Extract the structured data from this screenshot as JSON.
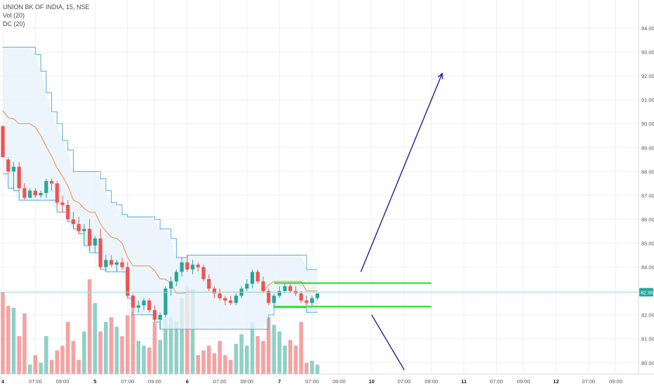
{
  "legend": {
    "title": "UNION BK OF INDIA, 15, NSE",
    "vol": "Vol (20)",
    "dc": "DC (20)"
  },
  "colors": {
    "up": "#26a69a",
    "down": "#ef5350",
    "vol_up": "#8fd1c6",
    "vol_down": "#f4a3a3",
    "dc_band": "#5aabe0",
    "dc_basis": "#f0883e",
    "dc_fill": "#e8f3fb",
    "box": "#22dd22",
    "arrow": "#1f1fa0",
    "price_line": "#9fd8d0",
    "price_tag": "#26a69a",
    "grid": "#eef0f3",
    "axis_text": "#555555"
  },
  "chart_data": {
    "type": "candlestick",
    "symbol": "UNION BK OF INDIA",
    "interval": "15",
    "exchange": "NSE",
    "indicators": [
      "Vol (20)",
      "DC (20)"
    ],
    "yaxis": {
      "ticks": [
        "94.00",
        "93.00",
        "92.00",
        "91.00",
        "90.00",
        "89.00",
        "88.00",
        "87.00",
        "86.00",
        "85.00",
        "84.00",
        "83.00",
        "82.00",
        "81.00",
        "80.00"
      ],
      "min": 79.7,
      "max": 94.5
    },
    "last_price": "82.95",
    "xaxis_ticks": [
      {
        "label": "4",
        "bar": 0
      },
      {
        "label": "07:00",
        "bar": 6
      },
      {
        "label": "09:00",
        "bar": 11
      },
      {
        "label": "5",
        "bar": 17
      },
      {
        "label": "07:00",
        "bar": 23
      },
      {
        "label": "09:00",
        "bar": 28
      },
      {
        "label": "6",
        "bar": 34
      },
      {
        "label": "07:00",
        "bar": 40
      },
      {
        "label": "09:00",
        "bar": 45
      },
      {
        "label": "7",
        "bar": 51
      },
      {
        "label": "07:00",
        "bar": 57
      },
      {
        "label": "09:00",
        "bar": 62
      },
      {
        "label": "10",
        "bar": 68
      },
      {
        "label": "07:00",
        "bar": 74
      },
      {
        "label": "09:00",
        "bar": 79
      },
      {
        "label": "11",
        "bar": 85
      },
      {
        "label": "07:00",
        "bar": 91
      },
      {
        "label": "09:00",
        "bar": 96
      },
      {
        "label": "12",
        "bar": 102
      },
      {
        "label": "07:00",
        "bar": 108
      },
      {
        "label": "09:00",
        "bar": 113
      }
    ],
    "candles": [
      [
        89.9,
        89.9,
        88.6,
        88.6
      ],
      [
        88.5,
        88.6,
        87.9,
        88.0
      ],
      [
        88.0,
        88.4,
        87.3,
        88.2
      ],
      [
        88.2,
        88.4,
        87.2,
        87.3
      ],
      [
        87.3,
        87.5,
        86.8,
        86.9
      ],
      [
        86.9,
        87.3,
        86.9,
        87.2
      ],
      [
        87.2,
        87.3,
        86.9,
        87.0
      ],
      [
        87.0,
        87.2,
        86.9,
        87.1
      ],
      [
        87.1,
        87.7,
        86.9,
        87.6
      ],
      [
        87.6,
        87.7,
        87.2,
        87.5
      ],
      [
        87.5,
        87.6,
        86.6,
        86.7
      ],
      [
        86.7,
        87.0,
        86.3,
        86.6
      ],
      [
        86.6,
        86.8,
        85.9,
        86.0
      ],
      [
        86.0,
        86.3,
        85.6,
        85.8
      ],
      [
        85.8,
        86.1,
        85.4,
        85.5
      ],
      [
        85.5,
        85.8,
        84.9,
        85.6
      ],
      [
        85.6,
        86.0,
        84.7,
        84.9
      ],
      [
        84.9,
        85.3,
        84.6,
        85.2
      ],
      [
        85.2,
        85.6,
        83.9,
        84.0
      ],
      [
        84.0,
        84.5,
        83.8,
        84.3
      ],
      [
        84.3,
        84.5,
        84.0,
        84.1
      ],
      [
        84.1,
        84.3,
        83.8,
        84.2
      ],
      [
        84.2,
        84.4,
        83.9,
        84.0
      ],
      [
        84.0,
        84.2,
        82.7,
        82.8
      ],
      [
        82.8,
        82.9,
        82.0,
        82.3
      ],
      [
        82.3,
        82.6,
        82.1,
        82.4
      ],
      [
        82.4,
        82.7,
        82.2,
        82.6
      ],
      [
        82.6,
        82.7,
        82.1,
        82.2
      ],
      [
        82.2,
        82.4,
        81.7,
        81.8
      ],
      [
        81.8,
        82.1,
        81.4,
        82.0
      ],
      [
        82.0,
        83.2,
        81.9,
        83.1
      ],
      [
        83.1,
        83.6,
        82.8,
        83.4
      ],
      [
        83.4,
        83.9,
        83.2,
        83.8
      ],
      [
        83.8,
        84.4,
        83.6,
        84.2
      ],
      [
        84.2,
        84.5,
        83.8,
        83.9
      ],
      [
        83.9,
        84.3,
        83.7,
        84.1
      ],
      [
        84.1,
        84.2,
        83.8,
        84.0
      ],
      [
        84.0,
        84.1,
        83.4,
        83.5
      ],
      [
        83.5,
        83.7,
        83.0,
        83.1
      ],
      [
        83.1,
        83.2,
        82.7,
        82.9
      ],
      [
        82.9,
        83.1,
        82.6,
        82.7
      ],
      [
        82.7,
        82.8,
        82.4,
        82.6
      ],
      [
        82.6,
        82.8,
        82.4,
        82.5
      ],
      [
        82.5,
        82.9,
        82.4,
        82.8
      ],
      [
        82.8,
        83.2,
        82.7,
        83.1
      ],
      [
        83.1,
        83.5,
        83.0,
        83.3
      ],
      [
        83.3,
        83.9,
        83.1,
        83.8
      ],
      [
        83.8,
        83.9,
        83.3,
        83.4
      ],
      [
        83.4,
        83.6,
        82.9,
        83.0
      ],
      [
        83.0,
        83.1,
        82.4,
        82.5
      ],
      [
        82.5,
        82.9,
        82.3,
        82.8
      ],
      [
        82.8,
        83.2,
        82.7,
        83.0
      ],
      [
        83.0,
        83.3,
        82.9,
        83.2
      ],
      [
        83.2,
        83.3,
        82.9,
        83.0
      ],
      [
        83.0,
        83.2,
        82.8,
        82.9
      ],
      [
        82.9,
        83.0,
        82.5,
        82.6
      ],
      [
        82.6,
        82.8,
        82.4,
        82.5
      ],
      [
        82.5,
        82.8,
        82.4,
        82.7
      ],
      [
        82.7,
        82.9,
        82.6,
        82.9
      ]
    ],
    "volumes": [
      0.86,
      0.72,
      0.7,
      0.4,
      0.64,
      0.1,
      0.2,
      0.12,
      0.4,
      0.15,
      0.25,
      0.3,
      0.55,
      0.35,
      0.15,
      0.45,
      1.0,
      0.75,
      0.45,
      0.55,
      0.6,
      0.5,
      0.4,
      0.62,
      0.82,
      0.35,
      0.3,
      0.28,
      0.55,
      0.36,
      0.58,
      0.6,
      0.56,
      0.8,
      0.92,
      0.9,
      0.2,
      0.25,
      0.3,
      0.22,
      0.35,
      0.2,
      0.15,
      0.32,
      0.42,
      0.3,
      0.55,
      0.4,
      0.35,
      0.6,
      0.52,
      0.45,
      0.3,
      0.36,
      0.3,
      0.55,
      0.12,
      0.14,
      0.1
    ],
    "donchian_upper": [
      93.2,
      93.2,
      93.2,
      93.2,
      93.2,
      93.2,
      92.9,
      92.2,
      91.3,
      90.5,
      90.0,
      89.3,
      88.9,
      88.0,
      88.0,
      88.0,
      88.0,
      88.0,
      87.7,
      87.2,
      86.7,
      86.6,
      86.2,
      86.1,
      86.1,
      86.1,
      86.1,
      86.1,
      86.0,
      85.6,
      85.6,
      85.2,
      84.4,
      84.4,
      84.5,
      84.5,
      84.5,
      84.5,
      84.5,
      84.5,
      84.5,
      84.5,
      84.5,
      84.5,
      84.5,
      84.5,
      84.5,
      84.5,
      84.5,
      84.5,
      84.5,
      84.5,
      84.5,
      84.5,
      84.5,
      84.5,
      83.9,
      83.9,
      83.9
    ],
    "donchian_lower": [
      87.9,
      87.3,
      87.2,
      86.8,
      86.8,
      86.8,
      86.8,
      86.8,
      86.8,
      86.8,
      86.3,
      86.3,
      85.9,
      85.6,
      85.4,
      84.9,
      84.6,
      84.6,
      83.9,
      83.8,
      83.8,
      83.8,
      83.8,
      82.7,
      82.0,
      82.0,
      82.0,
      82.0,
      81.7,
      81.4,
      81.4,
      81.4,
      81.4,
      81.4,
      81.4,
      81.4,
      81.4,
      81.4,
      81.4,
      81.4,
      81.4,
      81.4,
      81.4,
      81.4,
      81.4,
      81.4,
      81.4,
      81.4,
      81.4,
      82.0,
      82.3,
      82.3,
      82.3,
      82.3,
      82.3,
      82.3,
      82.1,
      82.1,
      82.1
    ],
    "drawings": {
      "range_box": {
        "top": 83.33,
        "bottom": 82.35,
        "from_bar": 50,
        "to_bar": 79
      },
      "arrow_up": {
        "from": [
          66,
          83.8
        ],
        "to": [
          81,
          92.1
        ]
      },
      "line_down": {
        "from": [
          68,
          82.0
        ],
        "to": [
          74,
          79.7
        ]
      }
    }
  }
}
